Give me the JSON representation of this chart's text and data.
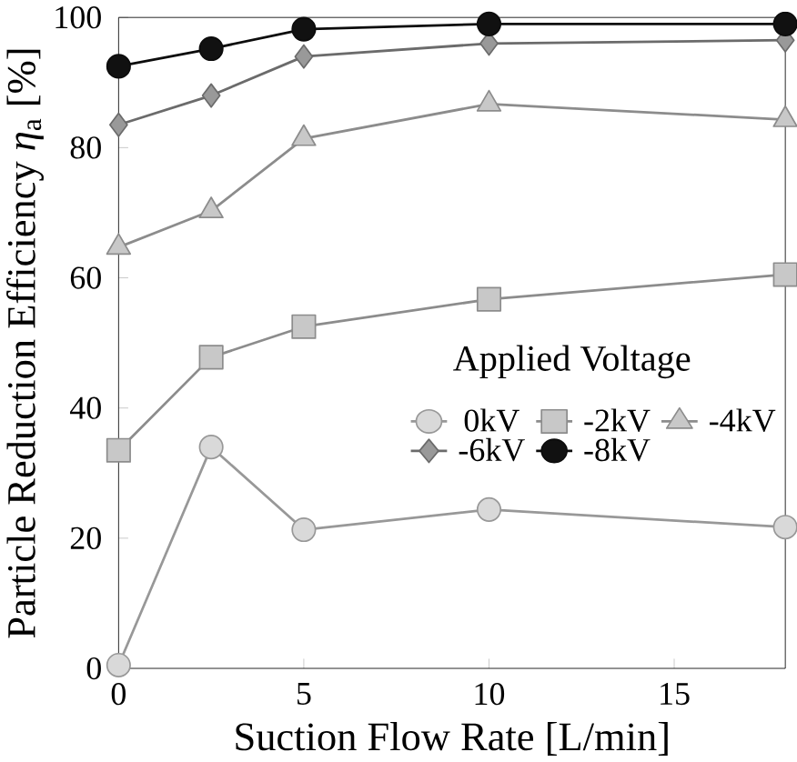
{
  "chart_data": {
    "type": "line",
    "xlabel": "Suction Flow Rate [L/min]",
    "ylabel": "Particle Reduction Efficiency *η*$_{a}$ [%]",
    "legend_title": "Applied Voltage",
    "x": [
      0,
      2.5,
      5,
      10,
      18
    ],
    "series": [
      {
        "name": "0kV",
        "color": "#d9d9d9",
        "marker": "circle",
        "values": [
          0.5,
          34,
          21.3,
          24.4,
          21.7
        ]
      },
      {
        "name": "-2kV",
        "color": "#c8c8c8",
        "marker": "square",
        "values": [
          33.5,
          47.8,
          52.5,
          56.7,
          60.5
        ]
      },
      {
        "name": "-4kV",
        "color": "#c8c8c8",
        "marker": "triangle",
        "values": [
          64.7,
          70.3,
          81.4,
          86.7,
          84.3
        ]
      },
      {
        "name": "-6kV",
        "color": "#999999",
        "marker": "diamond",
        "values": [
          83.5,
          88,
          94,
          96,
          96.5
        ]
      },
      {
        "name": "-8kV",
        "color": "#111111",
        "marker": "circle",
        "values": [
          92.5,
          95.2,
          98.2,
          99,
          99
        ]
      }
    ],
    "xlim": [
      0,
      18
    ],
    "ylim": [
      0,
      100
    ],
    "xticks": [
      0,
      5,
      10,
      15
    ],
    "yticks": [
      0,
      20,
      40,
      60,
      80,
      100
    ],
    "grid": false,
    "legend": "right",
    "line_style": "solid"
  }
}
